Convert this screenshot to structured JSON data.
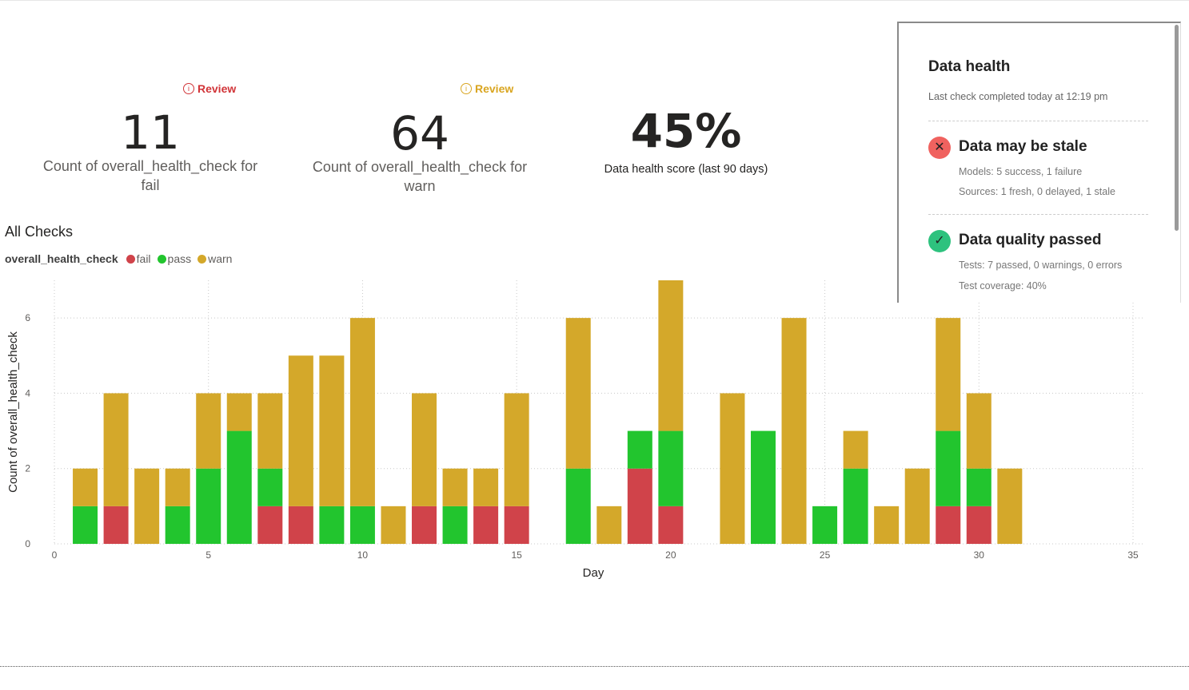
{
  "kpis": [
    {
      "review": "Review",
      "review_color": "#d13438",
      "value": "11",
      "label": "Count of overall_health_check for fail"
    },
    {
      "review": "Review",
      "review_color": "#d9a520",
      "value": "64",
      "label": "Count of overall_health_check for warn"
    },
    {
      "value": "45%",
      "label": "Data health score (last 90 days)"
    }
  ],
  "panel": {
    "title": "Data health",
    "subtitle": "Last check completed today at 12:19 pm",
    "statuses": [
      {
        "icon": "x-circle-icon",
        "color": "#f0625f",
        "title": "Data may be stale",
        "lines": [
          "Models: 5 success, 1 failure",
          "Sources: 1 fresh, 0 delayed, 1 stale"
        ]
      },
      {
        "icon": "check-circle-icon",
        "color": "#2ec27e",
        "title": "Data quality passed",
        "lines": [
          "Tests: 7 passed, 0 warnings, 0 errors",
          "Test coverage: 40%"
        ]
      }
    ]
  },
  "chart_data": {
    "type": "bar",
    "stacked": true,
    "title": "All Checks",
    "legend_title": "overall_health_check",
    "legend_position": "top-left",
    "xlabel": "Day",
    "ylabel": "Count of overall_health_check",
    "xlim": [
      0,
      35
    ],
    "ylim": [
      0,
      7
    ],
    "xticks": [
      "0",
      "5",
      "10",
      "15",
      "20",
      "25",
      "30",
      "35"
    ],
    "yticks": [
      "0",
      "2",
      "4",
      "6"
    ],
    "grid": true,
    "x": [
      1,
      2,
      3,
      4,
      5,
      6,
      7,
      8,
      9,
      10,
      11,
      12,
      13,
      14,
      15,
      16,
      17,
      18,
      19,
      20,
      21,
      22,
      23,
      24,
      25,
      26,
      27,
      28,
      29,
      30,
      31
    ],
    "series": [
      {
        "name": "fail",
        "color": "#d0434a",
        "values": [
          0,
          1,
          0,
          0,
          0,
          0,
          1,
          1,
          0,
          0,
          0,
          1,
          0,
          1,
          1,
          0,
          0,
          0,
          2,
          1,
          0,
          0,
          0,
          0,
          0,
          0,
          0,
          0,
          1,
          1,
          0
        ]
      },
      {
        "name": "pass",
        "color": "#22c52e",
        "values": [
          1,
          0,
          0,
          1,
          2,
          3,
          1,
          0,
          1,
          1,
          0,
          0,
          1,
          0,
          0,
          0,
          2,
          0,
          1,
          2,
          0,
          0,
          3,
          0,
          1,
          2,
          0,
          0,
          2,
          1,
          0
        ]
      },
      {
        "name": "warn",
        "color": "#d4a82a",
        "values": [
          1,
          3,
          2,
          1,
          2,
          1,
          2,
          4,
          4,
          5,
          1,
          3,
          1,
          1,
          3,
          0,
          4,
          1,
          0,
          4,
          0,
          4,
          0,
          6,
          0,
          1,
          1,
          2,
          3,
          2,
          2
        ]
      }
    ]
  }
}
